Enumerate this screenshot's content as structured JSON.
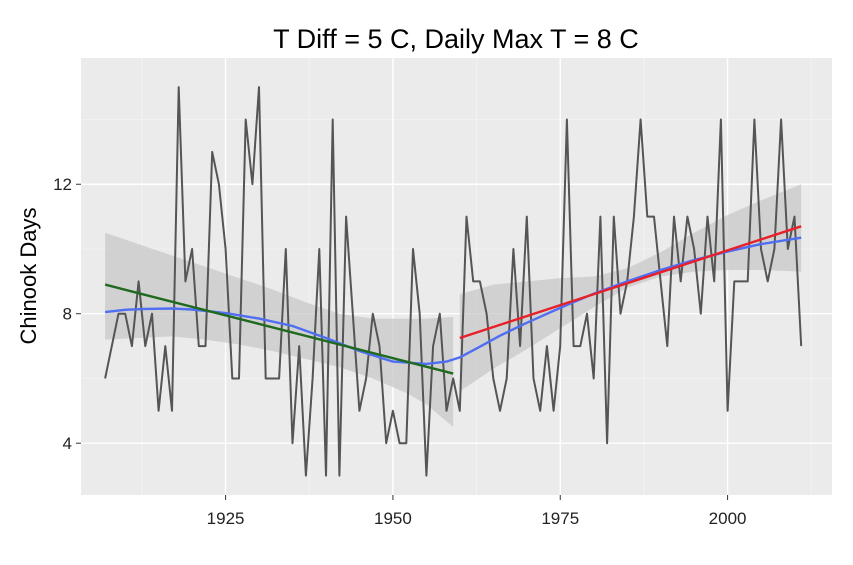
{
  "chart_data": {
    "type": "line",
    "title": "T Diff = 5 C, Daily Max T = 8 C",
    "xlabel": "",
    "ylabel": "Chinook Days",
    "xlim": [
      1903.4,
      2015.6
    ],
    "ylim": [
      2.4,
      15.9
    ],
    "x_ticks": [
      1925,
      1950,
      1975,
      2000
    ],
    "y_ticks": [
      4,
      8,
      12
    ],
    "grid": true,
    "legend": "none",
    "series": [
      {
        "id": "observed",
        "color": "#555555",
        "x": [
          1907,
          1908,
          1909,
          1910,
          1911,
          1912,
          1913,
          1914,
          1915,
          1916,
          1917,
          1918,
          1919,
          1920,
          1921,
          1922,
          1923,
          1924,
          1925,
          1926,
          1927,
          1928,
          1929,
          1930,
          1931,
          1932,
          1933,
          1934,
          1935,
          1936,
          1937,
          1938,
          1939,
          1940,
          1941,
          1942,
          1943,
          1944,
          1945,
          1946,
          1947,
          1948,
          1949,
          1950,
          1951,
          1952,
          1953,
          1954,
          1955,
          1956,
          1957,
          1958,
          1959,
          1960,
          1961,
          1962,
          1963,
          1964,
          1965,
          1966,
          1967,
          1968,
          1969,
          1970,
          1971,
          1972,
          1973,
          1974,
          1975,
          1976,
          1977,
          1978,
          1979,
          1980,
          1981,
          1982,
          1983,
          1984,
          1985,
          1986,
          1987,
          1988,
          1989,
          1990,
          1991,
          1992,
          1993,
          1994,
          1995,
          1996,
          1997,
          1998,
          1999,
          2000,
          2001,
          2002,
          2003,
          2004,
          2005,
          2006,
          2007,
          2008,
          2009,
          2010,
          2011
        ],
        "y": [
          6,
          7,
          8,
          8,
          7,
          9,
          7,
          8,
          5,
          7,
          5,
          15,
          9,
          10,
          7,
          7,
          13,
          12,
          10,
          6,
          6,
          14,
          12,
          15,
          6,
          6,
          6,
          10,
          4,
          7,
          3,
          6,
          10,
          3,
          14,
          3,
          11,
          8,
          5,
          6,
          8,
          7,
          4,
          5,
          4,
          4,
          10,
          8,
          3,
          7,
          8,
          5,
          6,
          5,
          11,
          9,
          9,
          8,
          6,
          5,
          6,
          10,
          7,
          11,
          6,
          5,
          7,
          5,
          7,
          14,
          7,
          7,
          8,
          6,
          11,
          4,
          11,
          8,
          9,
          11,
          14,
          11,
          11,
          9,
          7,
          11,
          9,
          11,
          10,
          8,
          11,
          9,
          14,
          5,
          9,
          9,
          9,
          14,
          10,
          9,
          10,
          14,
          10,
          11,
          7
        ]
      },
      {
        "id": "smooth",
        "color": "#4f6ef2",
        "x": [
          1907,
          1910,
          1913,
          1917,
          1920,
          1925,
          1930,
          1935,
          1940,
          1945,
          1950,
          1955,
          1958,
          1960,
          1963,
          1966,
          1970,
          1975,
          1980,
          1985,
          1990,
          1995,
          2000,
          2005,
          2011
        ],
        "y": [
          8.05,
          8.12,
          8.15,
          8.16,
          8.13,
          8.02,
          7.85,
          7.62,
          7.25,
          6.85,
          6.52,
          6.45,
          6.52,
          6.65,
          6.98,
          7.32,
          7.72,
          8.18,
          8.62,
          9.0,
          9.35,
          9.66,
          9.92,
          10.15,
          10.35
        ]
      },
      {
        "id": "trend-early",
        "color": "#1f6a1f",
        "x": [
          1907,
          1959
        ],
        "y": [
          8.9,
          6.15
        ]
      },
      {
        "id": "trend-late",
        "color": "#e8202a",
        "x": [
          1960,
          2011
        ],
        "y": [
          7.25,
          10.7
        ]
      }
    ],
    "bands": [
      {
        "id": "band-early",
        "x": [
          1907,
          1912,
          1917,
          1922,
          1927,
          1932,
          1937,
          1942,
          1947,
          1952,
          1955,
          1959
        ],
        "lower": [
          7.2,
          7.25,
          7.3,
          7.2,
          7.05,
          6.85,
          6.6,
          6.35,
          6.0,
          5.55,
          5.2,
          4.5
        ],
        "upper": [
          10.5,
          10.15,
          9.8,
          9.45,
          9.1,
          8.75,
          8.35,
          8.0,
          7.85,
          7.85,
          7.85,
          7.9
        ]
      },
      {
        "id": "band-late",
        "x": [
          1960,
          1965,
          1970,
          1975,
          1980,
          1985,
          1990,
          1995,
          2000,
          2005,
          2011
        ],
        "lower": [
          5.6,
          6.3,
          6.9,
          7.55,
          8.2,
          8.8,
          9.15,
          9.3,
          9.35,
          9.35,
          9.3
        ],
        "upper": [
          8.6,
          8.9,
          9.0,
          9.1,
          9.15,
          9.4,
          9.9,
          10.5,
          11.05,
          11.5,
          12.0
        ]
      }
    ]
  }
}
